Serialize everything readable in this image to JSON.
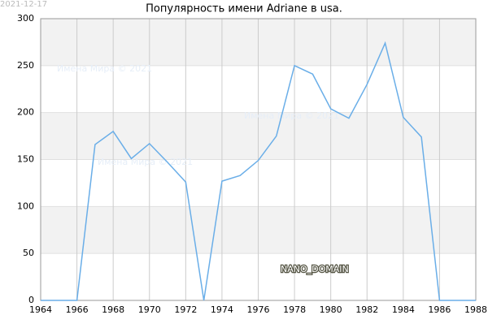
{
  "date": "2021-12-17",
  "watermark": "Имена Мира © 2021",
  "domain_label": "NANO_DOMAIN",
  "chart_data": {
    "type": "line",
    "title": "Популярность имени Adriane в usa.",
    "x": [
      1964,
      1965,
      1966,
      1967,
      1968,
      1969,
      1970,
      1971,
      1972,
      1973,
      1974,
      1975,
      1976,
      1977,
      1978,
      1979,
      1980,
      1981,
      1982,
      1983,
      1984,
      1985,
      1986,
      1987,
      1988
    ],
    "series": [
      {
        "name": "Adriane",
        "color": "#6aaee8",
        "values": [
          0,
          0,
          0,
          166,
          180,
          151,
          167,
          147,
          126,
          0,
          127,
          133,
          149,
          175,
          250,
          241,
          204,
          194,
          230,
          274,
          195,
          174,
          0,
          0,
          0
        ]
      }
    ],
    "xlim": [
      1964,
      1988
    ],
    "xticks": [
      1964,
      1966,
      1968,
      1970,
      1972,
      1974,
      1976,
      1978,
      1980,
      1982,
      1984,
      1986,
      1988
    ],
    "ylim": [
      0,
      300
    ],
    "yticks": [
      0,
      50,
      100,
      150,
      200,
      250,
      300
    ],
    "grid": true
  }
}
